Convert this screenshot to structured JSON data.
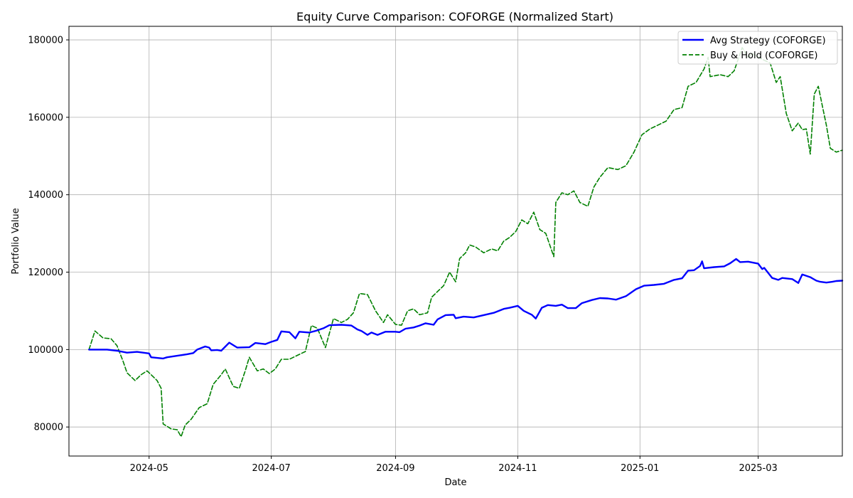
{
  "chart_data": {
    "type": "line",
    "title": "Equity Curve Comparison: COFORGE (Normalized Start)",
    "xlabel": "Date",
    "ylabel": "Portfolio Value",
    "x_tick_labels": [
      "2024-05",
      "2024-07",
      "2024-09",
      "2024-11",
      "2025-01",
      "2025-03"
    ],
    "y_tick_labels": [
      "80000",
      "100000",
      "120000",
      "140000",
      "160000",
      "180000"
    ],
    "ylim": [
      72500,
      183500
    ],
    "xlim": [
      "2024-03-22",
      "2025-04-12"
    ],
    "grid": true,
    "legend_position": "top-right",
    "series": [
      {
        "name": "Avg Strategy (COFORGE)",
        "color": "#0000ff",
        "style": "solid",
        "points": [
          [
            "2024-04-01",
            100000
          ],
          [
            "2024-04-10",
            100000
          ],
          [
            "2024-04-15",
            99700
          ],
          [
            "2024-04-20",
            99200
          ],
          [
            "2024-04-25",
            99400
          ],
          [
            "2024-05-01",
            99000
          ],
          [
            "2024-05-02",
            98000
          ],
          [
            "2024-05-08",
            97700
          ],
          [
            "2024-05-10",
            98000
          ],
          [
            "2024-05-15",
            98400
          ],
          [
            "2024-05-20",
            98800
          ],
          [
            "2024-05-23",
            99100
          ],
          [
            "2024-05-25",
            100000
          ],
          [
            "2024-05-29",
            100800
          ],
          [
            "2024-05-31",
            100500
          ],
          [
            "2024-06-01",
            99800
          ],
          [
            "2024-06-04",
            99900
          ],
          [
            "2024-06-06",
            99700
          ],
          [
            "2024-06-10",
            101800
          ],
          [
            "2024-06-14",
            100500
          ],
          [
            "2024-06-20",
            100600
          ],
          [
            "2024-06-23",
            101700
          ],
          [
            "2024-06-28",
            101400
          ],
          [
            "2024-07-01",
            102000
          ],
          [
            "2024-07-04",
            102500
          ],
          [
            "2024-07-06",
            104700
          ],
          [
            "2024-07-10",
            104500
          ],
          [
            "2024-07-13",
            102900
          ],
          [
            "2024-07-15",
            104600
          ],
          [
            "2024-07-20",
            104400
          ],
          [
            "2024-07-23",
            104800
          ],
          [
            "2024-07-27",
            105500
          ],
          [
            "2024-07-30",
            106300
          ],
          [
            "2024-08-05",
            106400
          ],
          [
            "2024-08-10",
            106200
          ],
          [
            "2024-08-13",
            105200
          ],
          [
            "2024-08-15",
            104800
          ],
          [
            "2024-08-18",
            103800
          ],
          [
            "2024-08-20",
            104400
          ],
          [
            "2024-08-23",
            103800
          ],
          [
            "2024-08-27",
            104600
          ],
          [
            "2024-09-01",
            104600
          ],
          [
            "2024-09-03",
            104500
          ],
          [
            "2024-09-06",
            105400
          ],
          [
            "2024-09-10",
            105700
          ],
          [
            "2024-09-13",
            106200
          ],
          [
            "2024-09-16",
            106800
          ],
          [
            "2024-09-20",
            106400
          ],
          [
            "2024-09-22",
            107800
          ],
          [
            "2024-09-26",
            108900
          ],
          [
            "2024-09-30",
            109000
          ],
          [
            "2024-10-01",
            108100
          ],
          [
            "2024-10-05",
            108500
          ],
          [
            "2024-10-10",
            108300
          ],
          [
            "2024-10-15",
            108900
          ],
          [
            "2024-10-20",
            109500
          ],
          [
            "2024-10-25",
            110500
          ],
          [
            "2024-10-28",
            110800
          ],
          [
            "2024-11-01",
            111300
          ],
          [
            "2024-11-04",
            110000
          ],
          [
            "2024-11-08",
            109000
          ],
          [
            "2024-11-10",
            108000
          ],
          [
            "2024-11-13",
            110800
          ],
          [
            "2024-11-16",
            111500
          ],
          [
            "2024-11-20",
            111300
          ],
          [
            "2024-11-23",
            111600
          ],
          [
            "2024-11-26",
            110700
          ],
          [
            "2024-11-30",
            110700
          ],
          [
            "2024-12-03",
            112000
          ],
          [
            "2024-12-08",
            112800
          ],
          [
            "2024-12-12",
            113300
          ],
          [
            "2024-12-16",
            113200
          ],
          [
            "2024-12-20",
            112900
          ],
          [
            "2024-12-25",
            113800
          ],
          [
            "2024-12-30",
            115600
          ],
          [
            "2025-01-03",
            116500
          ],
          [
            "2025-01-08",
            116700
          ],
          [
            "2025-01-13",
            117000
          ],
          [
            "2025-01-18",
            118000
          ],
          [
            "2025-01-22",
            118400
          ],
          [
            "2025-01-25",
            120400
          ],
          [
            "2025-01-28",
            120500
          ],
          [
            "2025-01-31",
            121600
          ],
          [
            "2025-02-01",
            122800
          ],
          [
            "2025-02-02",
            121000
          ],
          [
            "2025-02-07",
            121300
          ],
          [
            "2025-02-12",
            121500
          ],
          [
            "2025-02-15",
            122300
          ],
          [
            "2025-02-18",
            123400
          ],
          [
            "2025-02-20",
            122600
          ],
          [
            "2025-02-24",
            122700
          ],
          [
            "2025-03-01",
            122200
          ],
          [
            "2025-03-03",
            120800
          ],
          [
            "2025-03-04",
            121100
          ],
          [
            "2025-03-08",
            118500
          ],
          [
            "2025-03-11",
            118000
          ],
          [
            "2025-03-13",
            118500
          ],
          [
            "2025-03-18",
            118200
          ],
          [
            "2025-03-21",
            117200
          ],
          [
            "2025-03-23",
            119400
          ],
          [
            "2025-03-27",
            118700
          ],
          [
            "2025-03-30",
            117800
          ],
          [
            "2025-04-01",
            117500
          ],
          [
            "2025-04-04",
            117300
          ],
          [
            "2025-04-07",
            117500
          ],
          [
            "2025-04-09",
            117700
          ],
          [
            "2025-04-12",
            117800
          ]
        ]
      },
      {
        "name": "Buy & Hold (COFORGE)",
        "color": "#008000",
        "style": "dashed",
        "points": [
          [
            "2024-04-01",
            100000
          ],
          [
            "2024-04-04",
            104800
          ],
          [
            "2024-04-08",
            103000
          ],
          [
            "2024-04-12",
            102800
          ],
          [
            "2024-04-15",
            101000
          ],
          [
            "2024-04-18",
            97000
          ],
          [
            "2024-04-20",
            94000
          ],
          [
            "2024-04-24",
            92000
          ],
          [
            "2024-04-27",
            93500
          ],
          [
            "2024-04-30",
            94500
          ],
          [
            "2024-05-02",
            93500
          ],
          [
            "2024-05-05",
            92000
          ],
          [
            "2024-05-07",
            90000
          ],
          [
            "2024-05-08",
            80800
          ],
          [
            "2024-05-12",
            79500
          ],
          [
            "2024-05-15",
            79300
          ],
          [
            "2024-05-17",
            77500
          ],
          [
            "2024-05-19",
            80500
          ],
          [
            "2024-05-22",
            82000
          ],
          [
            "2024-05-26",
            85000
          ],
          [
            "2024-05-30",
            86000
          ],
          [
            "2024-06-02",
            91000
          ],
          [
            "2024-06-06",
            93500
          ],
          [
            "2024-06-08",
            95000
          ],
          [
            "2024-06-12",
            90500
          ],
          [
            "2024-06-15",
            90000
          ],
          [
            "2024-06-18",
            94500
          ],
          [
            "2024-06-20",
            98000
          ],
          [
            "2024-06-24",
            94500
          ],
          [
            "2024-06-27",
            95000
          ],
          [
            "2024-06-30",
            93800
          ],
          [
            "2024-07-03",
            95000
          ],
          [
            "2024-07-06",
            97500
          ],
          [
            "2024-07-10",
            97500
          ],
          [
            "2024-07-14",
            98500
          ],
          [
            "2024-07-18",
            99500
          ],
          [
            "2024-07-21",
            106200
          ],
          [
            "2024-07-24",
            105500
          ],
          [
            "2024-07-28",
            100500
          ],
          [
            "2024-08-01",
            108000
          ],
          [
            "2024-08-05",
            107000
          ],
          [
            "2024-08-08",
            107800
          ],
          [
            "2024-08-11",
            109500
          ],
          [
            "2024-08-14",
            114500
          ],
          [
            "2024-08-18",
            114200
          ],
          [
            "2024-08-22",
            110000
          ],
          [
            "2024-08-26",
            107000
          ],
          [
            "2024-08-28",
            109000
          ],
          [
            "2024-09-01",
            106500
          ],
          [
            "2024-09-04",
            106300
          ],
          [
            "2024-09-07",
            110000
          ],
          [
            "2024-09-10",
            110500
          ],
          [
            "2024-09-13",
            109000
          ],
          [
            "2024-09-17",
            109500
          ],
          [
            "2024-09-19",
            113500
          ],
          [
            "2024-09-22",
            115000
          ],
          [
            "2024-09-25",
            116500
          ],
          [
            "2024-09-28",
            120000
          ],
          [
            "2024-10-01",
            117500
          ],
          [
            "2024-10-03",
            123500
          ],
          [
            "2024-10-06",
            125000
          ],
          [
            "2024-10-08",
            127000
          ],
          [
            "2024-10-11",
            126500
          ],
          [
            "2024-10-15",
            125000
          ],
          [
            "2024-10-19",
            126000
          ],
          [
            "2024-10-22",
            125500
          ],
          [
            "2024-10-25",
            128000
          ],
          [
            "2024-10-28",
            129000
          ],
          [
            "2024-10-31",
            130500
          ],
          [
            "2024-11-03",
            133500
          ],
          [
            "2024-11-06",
            132500
          ],
          [
            "2024-11-09",
            135500
          ],
          [
            "2024-11-12",
            131000
          ],
          [
            "2024-11-15",
            130000
          ],
          [
            "2024-11-19",
            124000
          ],
          [
            "2024-11-20",
            138000
          ],
          [
            "2024-11-23",
            140500
          ],
          [
            "2024-11-26",
            140000
          ],
          [
            "2024-11-29",
            141000
          ],
          [
            "2024-12-02",
            138000
          ],
          [
            "2024-12-06",
            137000
          ],
          [
            "2024-12-09",
            142000
          ],
          [
            "2024-12-12",
            144500
          ],
          [
            "2024-12-16",
            147000
          ],
          [
            "2024-12-21",
            146500
          ],
          [
            "2024-12-25",
            147500
          ],
          [
            "2024-12-29",
            151000
          ],
          [
            "2025-01-02",
            155500
          ],
          [
            "2025-01-06",
            157000
          ],
          [
            "2025-01-10",
            158000
          ],
          [
            "2025-01-14",
            159000
          ],
          [
            "2025-01-18",
            162000
          ],
          [
            "2025-01-22",
            162500
          ],
          [
            "2025-01-25",
            168000
          ],
          [
            "2025-01-29",
            169000
          ],
          [
            "2025-02-02",
            172500
          ],
          [
            "2025-02-04",
            175500
          ],
          [
            "2025-02-05",
            170500
          ],
          [
            "2025-02-10",
            171000
          ],
          [
            "2025-02-14",
            170500
          ],
          [
            "2025-02-17",
            172000
          ],
          [
            "2025-02-21",
            178000
          ],
          [
            "2025-02-24",
            175500
          ],
          [
            "2025-02-26",
            176500
          ],
          [
            "2025-03-03",
            175000
          ],
          [
            "2025-03-07",
            174000
          ],
          [
            "2025-03-10",
            169000
          ],
          [
            "2025-03-12",
            170500
          ],
          [
            "2025-03-15",
            161000
          ],
          [
            "2025-03-18",
            156500
          ],
          [
            "2025-03-21",
            158500
          ],
          [
            "2025-03-23",
            156800
          ],
          [
            "2025-03-25",
            157000
          ],
          [
            "2025-03-27",
            150500
          ],
          [
            "2025-03-29",
            166000
          ],
          [
            "2025-03-31",
            168000
          ],
          [
            "2025-04-02",
            163000
          ],
          [
            "2025-04-04",
            158000
          ],
          [
            "2025-04-06",
            152000
          ],
          [
            "2025-04-09",
            151000
          ],
          [
            "2025-04-12",
            151500
          ]
        ]
      }
    ]
  }
}
